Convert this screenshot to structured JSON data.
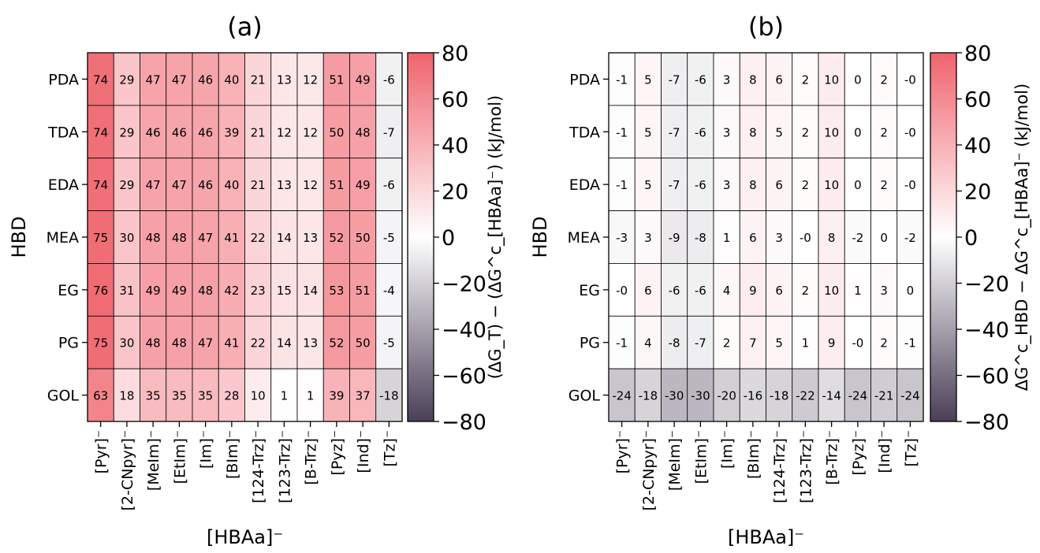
{
  "chart_data": [
    {
      "type": "heatmap",
      "title": "(a)",
      "xlabel": "[HBAa]⁻",
      "ylabel": "HBD",
      "colorbar_label": "(ΔG_T) − (ΔG^c_[HBAa]⁻) (kJ/mol)",
      "colorbar_ticks": [
        "80",
        "60",
        "40",
        "20",
        "0",
        "−20",
        "−40",
        "−60",
        "−80"
      ],
      "vmin": -80,
      "vmax": 80,
      "columns": [
        "[Pyr]⁻",
        "[2-CNpyr]⁻",
        "[MeIm]⁻",
        "[EtIm]⁻",
        "[Im]⁻",
        "[BIm]⁻",
        "[124-Trz]⁻",
        "[123-Trz]⁻",
        "[B-Trz]⁻",
        "[Pyz]⁻",
        "[Ind]⁻",
        "[Tz]⁻"
      ],
      "rows": [
        "PDA",
        "TDA",
        "EDA",
        "MEA",
        "EG",
        "PG",
        "GOL"
      ],
      "values": [
        [
          74,
          29,
          47,
          47,
          46,
          40,
          21,
          13,
          12,
          51,
          49,
          -6
        ],
        [
          74,
          29,
          46,
          46,
          46,
          39,
          21,
          12,
          12,
          50,
          48,
          -7
        ],
        [
          74,
          29,
          47,
          47,
          46,
          40,
          21,
          13,
          12,
          51,
          49,
          -6
        ],
        [
          75,
          30,
          48,
          48,
          47,
          41,
          22,
          14,
          13,
          52,
          50,
          -5
        ],
        [
          76,
          31,
          49,
          49,
          48,
          42,
          23,
          15,
          14,
          53,
          51,
          -4
        ],
        [
          75,
          30,
          48,
          48,
          47,
          41,
          22,
          14,
          13,
          52,
          50,
          -5
        ],
        [
          63,
          18,
          35,
          35,
          35,
          28,
          10,
          1,
          1,
          39,
          37,
          -18
        ]
      ]
    },
    {
      "type": "heatmap",
      "title": "(b)",
      "xlabel": "[HBAa]⁻",
      "ylabel": "HBD",
      "colorbar_label": "ΔG^c_HBD − ΔG^c_[HBAa]⁻ (kJ/mol)",
      "colorbar_ticks": [
        "80",
        "60",
        "40",
        "20",
        "0",
        "−20",
        "−40",
        "−60",
        "−80"
      ],
      "vmin": -80,
      "vmax": 80,
      "columns": [
        "[Pyr]⁻",
        "[2-CNpyr]⁻",
        "[MeIm]⁻",
        "[EtIm]⁻",
        "[Im]⁻",
        "[BIm]⁻",
        "[124-Trz]⁻",
        "[123-Trz]⁻",
        "[B-Trz]⁻",
        "[Pyz]⁻",
        "[Ind]⁻",
        "[Tz]⁻"
      ],
      "rows": [
        "PDA",
        "TDA",
        "EDA",
        "MEA",
        "EG",
        "PG",
        "GOL"
      ],
      "values": [
        [
          -1,
          5,
          -7,
          -6,
          3,
          8,
          6,
          2,
          10,
          0,
          2,
          "-0"
        ],
        [
          -1,
          5,
          -7,
          -6,
          3,
          8,
          5,
          2,
          10,
          0,
          2,
          "-0"
        ],
        [
          -1,
          5,
          -7,
          -6,
          3,
          8,
          6,
          2,
          10,
          0,
          2,
          "-0"
        ],
        [
          -3,
          3,
          -9,
          -8,
          1,
          6,
          3,
          "-0",
          8,
          -2,
          0,
          -2
        ],
        [
          "-0",
          6,
          -6,
          -6,
          4,
          9,
          6,
          2,
          10,
          1,
          3,
          0
        ],
        [
          -1,
          4,
          -8,
          -7,
          2,
          7,
          5,
          1,
          9,
          "-0",
          2,
          -1
        ],
        [
          -24,
          -18,
          -30,
          -30,
          -20,
          -16,
          -18,
          -22,
          -14,
          -24,
          -21,
          -24
        ]
      ]
    }
  ],
  "colors": {
    "high": "#f0636d",
    "mid": "#ffffff",
    "low": "#4a3f57"
  }
}
